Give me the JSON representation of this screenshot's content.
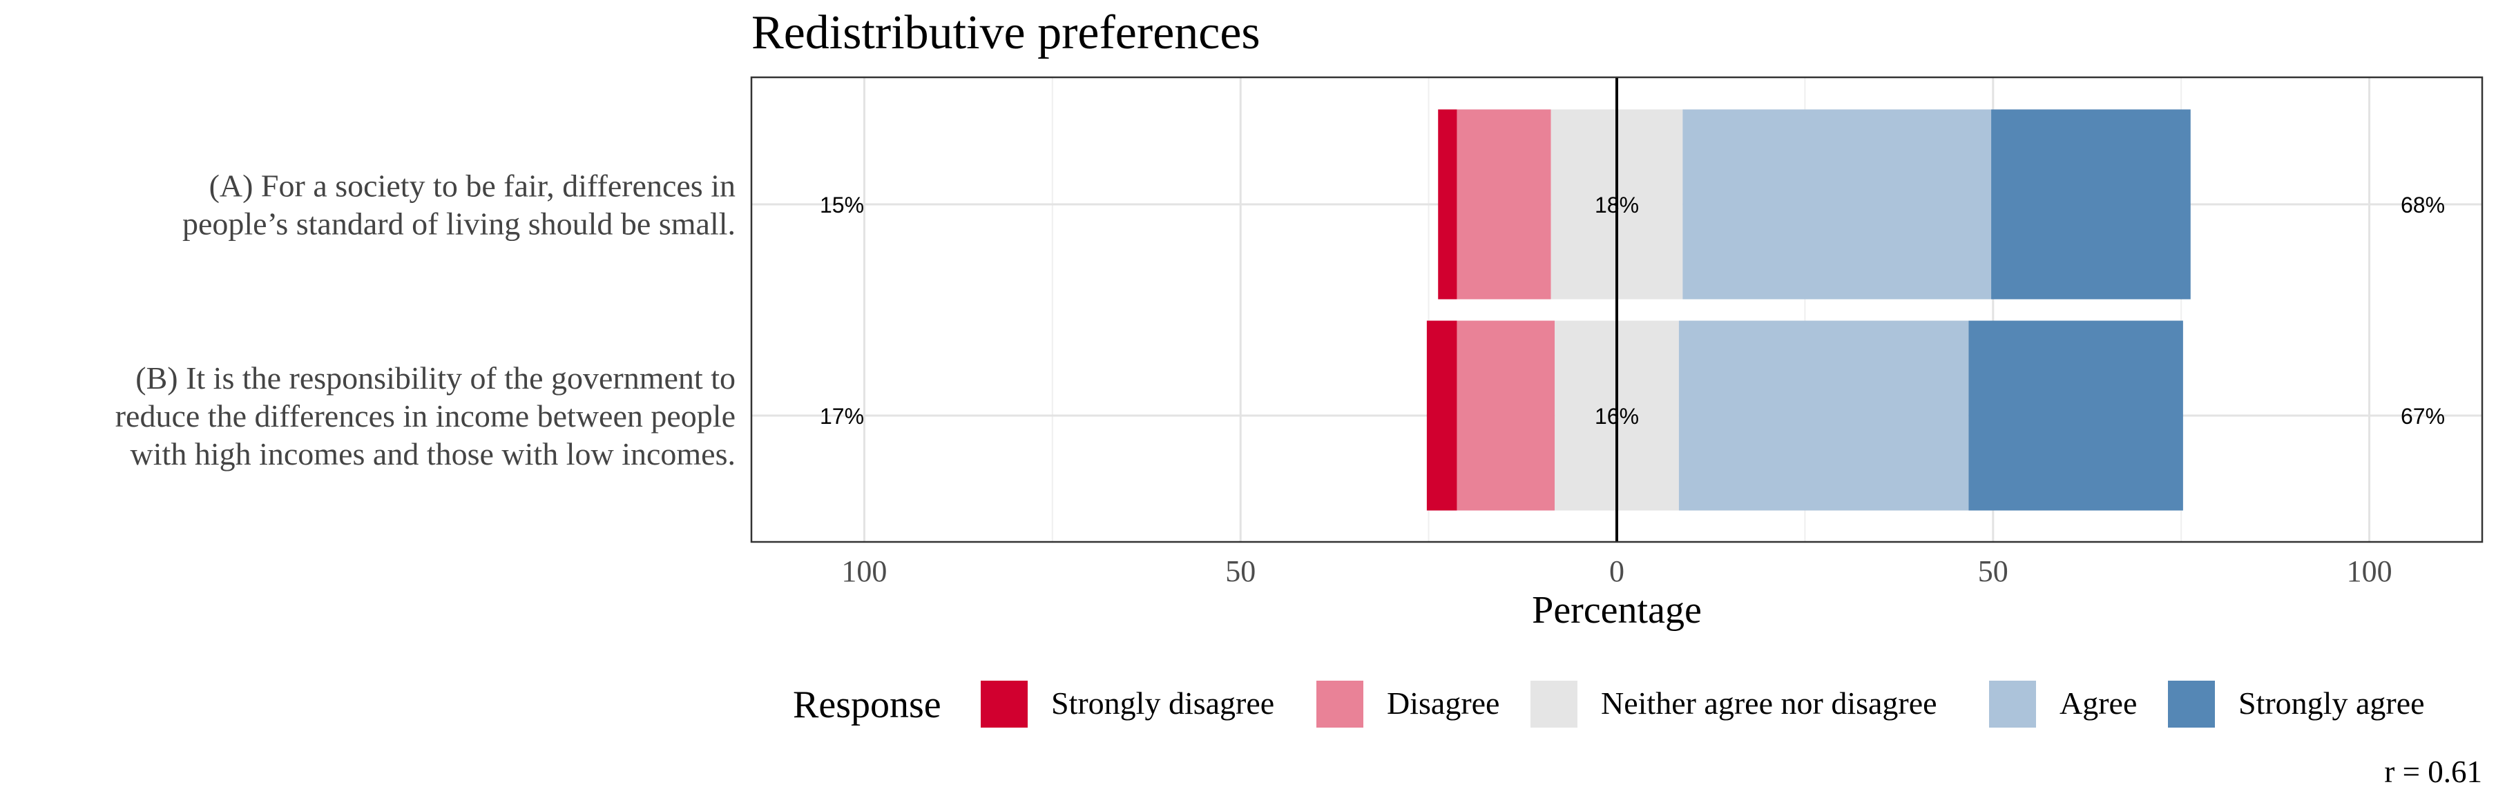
{
  "chart_data": {
    "type": "bar",
    "orientation": "horizontal",
    "stacking": "diverging",
    "title": "Redistributive preferences",
    "xlabel": "Percentage",
    "xlim": [
      -115,
      115
    ],
    "x_ticks": [
      {
        "value": -100,
        "label": "100"
      },
      {
        "value": -50,
        "label": "50"
      },
      {
        "value": 0,
        "label": "0"
      },
      {
        "value": 50,
        "label": "50"
      },
      {
        "value": 100,
        "label": "100"
      }
    ],
    "grid": true,
    "categories": [
      {
        "lines": [
          "(A) For a society to be fair, differences in",
          "people’s standard of living should be small."
        ]
      },
      {
        "lines": [
          "(B) It is the responsibility of the government to",
          "reduce the differences in income between people",
          "with high incomes and those with low incomes."
        ]
      }
    ],
    "series": [
      {
        "name": "Strongly disagree",
        "color": "#D1002F",
        "values": [
          2.5,
          4
        ]
      },
      {
        "name": "Disagree",
        "color": "#E98297",
        "values": [
          12.5,
          13
        ]
      },
      {
        "name": "Neither agree nor disagree",
        "color": "#E5E5E5",
        "values": [
          17.5,
          16.5
        ]
      },
      {
        "name": "Agree",
        "color": "#ACC3DA",
        "values": [
          41,
          38.5
        ]
      },
      {
        "name": "Strongly agree",
        "color": "#5587B5",
        "values": [
          26.5,
          28.5
        ]
      }
    ],
    "data_labels": {
      "disagree_total": [
        "15%",
        "17%"
      ],
      "neutral": [
        "18%",
        "16%"
      ],
      "agree_total": [
        "68%",
        "67%"
      ]
    },
    "legend": {
      "title": "Response",
      "position": "bottom"
    },
    "annotation": "r = 0.61"
  }
}
